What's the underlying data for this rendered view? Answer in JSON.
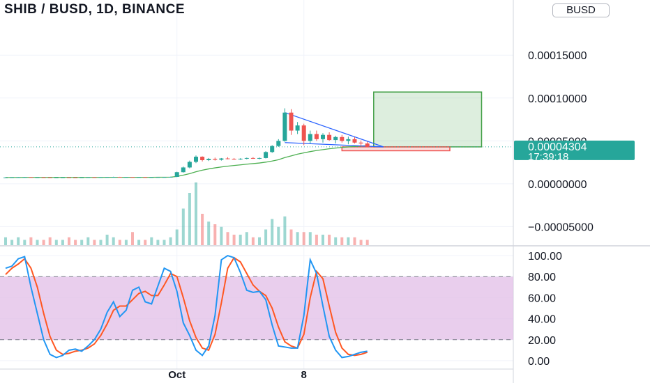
{
  "header": {
    "title": "SHIB / BUSD, 1D, BINANCE",
    "currency": "BUSD"
  },
  "chart_data": [
    {
      "type": "candlestick",
      "title": "SHIB / BUSD, 1D, BINANCE",
      "ylim": [
        -7e-05,
        0.00019
      ],
      "y_ticks": [
        "0.00015000",
        "0.00010000",
        "0.00005000",
        "0.00000000",
        "−0.00005000"
      ],
      "y_tick_values": [
        0.00015,
        0.0001,
        5e-05,
        0,
        -5e-05
      ],
      "x_ticks": [
        {
          "label": "Oct",
          "index": 27
        },
        {
          "label": "8",
          "index": 47
        }
      ],
      "last_price": "0.00004304",
      "last_price_value": 4.304e-05,
      "countdown": "17:39:18",
      "colors": {
        "up": "#26a69a",
        "down": "#ef5350",
        "ma": "#4caf50",
        "trendline": "#2962ff",
        "target_zone": "#43a047",
        "stop_zone": "#ef5350"
      },
      "ohlc": [
        [
          7e-06,
          7.5e-06,
          6.8e-06,
          7.2e-06
        ],
        [
          7.2e-06,
          7.6e-06,
          7e-06,
          7.4e-06
        ],
        [
          7.4e-06,
          7.8e-06,
          7.1e-06,
          7.5e-06
        ],
        [
          7.5e-06,
          7.9e-06,
          7.3e-06,
          7.7e-06
        ],
        [
          7.7e-06,
          7.8e-06,
          7.2e-06,
          7.3e-06
        ],
        [
          7.3e-06,
          7.6e-06,
          7.1e-06,
          7.4e-06
        ],
        [
          7.4e-06,
          7.7e-06,
          7.2e-06,
          7.3e-06
        ],
        [
          7.3e-06,
          7.5e-06,
          7e-06,
          7.1e-06
        ],
        [
          7.1e-06,
          7.4e-06,
          6.9e-06,
          7.2e-06
        ],
        [
          7.2e-06,
          7.4e-06,
          7e-06,
          7.3e-06
        ],
        [
          7.3e-06,
          7.5e-06,
          7.1e-06,
          7.2e-06
        ],
        [
          7.2e-06,
          7.4e-06,
          6.9e-06,
          7e-06
        ],
        [
          7e-06,
          7.4e-06,
          6.8e-06,
          7.3e-06
        ],
        [
          7.3e-06,
          7.6e-06,
          7.1e-06,
          7.5e-06
        ],
        [
          7.5e-06,
          7.7e-06,
          7.2e-06,
          7.4e-06
        ],
        [
          7.4e-06,
          7.7e-06,
          7.2e-06,
          7.6e-06
        ],
        [
          7.6e-06,
          8e-06,
          7.4e-06,
          7.8e-06
        ],
        [
          7.8e-06,
          8.2e-06,
          7.5e-06,
          8e-06
        ],
        [
          8e-06,
          8.1e-06,
          7.6e-06,
          7.7e-06
        ],
        [
          7.7e-06,
          8e-06,
          7.5e-06,
          7.8e-06
        ],
        [
          7.8e-06,
          8e-06,
          7.5e-06,
          7.6e-06
        ],
        [
          7.6e-06,
          7.9e-06,
          7.4e-06,
          7.7e-06
        ],
        [
          7.7e-06,
          7.9e-06,
          7.4e-06,
          7.5e-06
        ],
        [
          7.5e-06,
          7.8e-06,
          7.3e-06,
          7.6e-06
        ],
        [
          7.6e-06,
          7.8e-06,
          7.4e-06,
          7.7e-06
        ],
        [
          7.7e-06,
          7.9e-06,
          7.5e-06,
          7.8e-06
        ],
        [
          7.8e-06,
          8.2e-06,
          7.6e-06,
          8e-06
        ],
        [
          8e-06,
          1.4e-05,
          7.8e-06,
          1.35e-05
        ],
        [
          1.35e-05,
          2e-05,
          1.3e-05,
          1.9e-05
        ],
        [
          1.9e-05,
          2.7e-05,
          1.8e-05,
          2.55e-05
        ],
        [
          2.55e-05,
          3.3e-05,
          2.4e-05,
          3.15e-05
        ],
        [
          3.15e-05,
          3.2e-05,
          2.6e-05,
          2.75e-05
        ],
        [
          2.75e-05,
          3e-05,
          2.65e-05,
          2.9e-05
        ],
        [
          2.9e-05,
          3.05e-05,
          2.7e-05,
          2.8e-05
        ],
        [
          2.8e-05,
          3e-05,
          2.7e-05,
          2.95e-05
        ],
        [
          2.95e-05,
          3.1e-05,
          2.85e-05,
          2.9e-05
        ],
        [
          2.9e-05,
          3e-05,
          2.8e-05,
          2.85e-05
        ],
        [
          2.85e-05,
          2.98e-05,
          2.78e-05,
          2.92e-05
        ],
        [
          2.92e-05,
          3.05e-05,
          2.85e-05,
          3e-05
        ],
        [
          3e-05,
          3.1e-05,
          2.9e-05,
          2.95e-05
        ],
        [
          2.95e-05,
          3.05e-05,
          2.85e-05,
          3e-05
        ],
        [
          3e-05,
          3.8e-05,
          2.95e-05,
          3.7e-05
        ],
        [
          3.7e-05,
          4.5e-05,
          3.6e-05,
          4.4e-05
        ],
        [
          4.4e-05,
          5.2e-05,
          4.3e-05,
          5e-05
        ],
        [
          5e-05,
          8.8e-05,
          4.9e-05,
          8.3e-05
        ],
        [
          8.3e-05,
          8.7e-05,
          5.7e-05,
          6.2e-05
        ],
        [
          6.2e-05,
          7.2e-05,
          5.8e-05,
          6.8e-05
        ],
        [
          6.8e-05,
          7e-05,
          4.5e-05,
          5e-05
        ],
        [
          5e-05,
          6.2e-05,
          4.7e-05,
          5.8e-05
        ],
        [
          5.8e-05,
          6.2e-05,
          5e-05,
          5.2e-05
        ],
        [
          5.2e-05,
          5.9e-05,
          4.8e-05,
          5.7e-05
        ],
        [
          5.7e-05,
          6e-05,
          5e-05,
          5.1e-05
        ],
        [
          5.1e-05,
          5.6e-05,
          4.7e-05,
          5.45e-05
        ],
        [
          5.45e-05,
          5.7e-05,
          4.8e-05,
          5e-05
        ],
        [
          5e-05,
          5.5e-05,
          4.6e-05,
          5.2e-05
        ],
        [
          5.2e-05,
          5.45e-05,
          4.7e-05,
          4.8e-05
        ],
        [
          4.8e-05,
          5.05e-05,
          4.4e-05,
          4.7e-05
        ],
        [
          4.7e-05,
          4.9e-05,
          4.25e-05,
          4.3e-05
        ]
      ],
      "ma": [
        7.2e-06,
        7.3e-06,
        7.3e-06,
        7.4e-06,
        7.4e-06,
        7.4e-06,
        7.4e-06,
        7.4e-06,
        7.4e-06,
        7.4e-06,
        7.4e-06,
        7.4e-06,
        7.4e-06,
        7.4e-06,
        7.4e-06,
        7.4e-06,
        7.5e-06,
        7.5e-06,
        7.5e-06,
        7.5e-06,
        7.5e-06,
        7.5e-06,
        7.5e-06,
        7.5e-06,
        7.6e-06,
        7.6e-06,
        7.7e-06,
        8.5e-06,
        1e-05,
        1.18e-05,
        1.4e-05,
        1.58e-05,
        1.73e-05,
        1.85e-05,
        1.96e-05,
        2.05e-05,
        2.13e-05,
        2.2e-05,
        2.28e-05,
        2.35e-05,
        2.42e-05,
        2.52e-05,
        2.65e-05,
        2.8e-05,
        3.05e-05,
        3.25e-05,
        3.45e-05,
        3.6e-05,
        3.75e-05,
        3.88e-05,
        3.98e-05,
        4.08e-05,
        4.16e-05,
        4.23e-05,
        4.3e-05,
        4.35e-05,
        4.4e-05,
        4.44e-05
      ],
      "volume": [
        3,
        2,
        3,
        2,
        3,
        2,
        2,
        3,
        2,
        2,
        3,
        2,
        2,
        3,
        2,
        2,
        4,
        3,
        2,
        2,
        5,
        2,
        2,
        3,
        2,
        2,
        3,
        6,
        14,
        20,
        24,
        12,
        9,
        8,
        7,
        5,
        4,
        4,
        5,
        3,
        3,
        6,
        10,
        7,
        11,
        6,
        5,
        5,
        5,
        4,
        4,
        4,
        3,
        3,
        3,
        3,
        2,
        2
      ],
      "trendline_upper": {
        "from_index": 44,
        "from_value": 8.3e-05,
        "to_index": 58,
        "to_value": 4.3e-05
      },
      "trendline_lower": {
        "from_index": 44,
        "from_value": 4.8e-05,
        "to_index": 58,
        "to_value": 4.3e-05
      },
      "target_zone": {
        "from_index": 58,
        "to_index": 75,
        "top": 0.000107,
        "bottom": 4.3e-05
      },
      "stop_zone": {
        "from_index": 53,
        "to_index": 70,
        "top": 4.3e-05,
        "bottom": 3.85e-05
      }
    },
    {
      "type": "line",
      "indicator": "stochastic",
      "ylim": [
        -8,
        108
      ],
      "y_ticks": [
        "100.00",
        "80.00",
        "60.00",
        "40.00",
        "20.00",
        "0.00"
      ],
      "y_tick_values": [
        100,
        80,
        60,
        40,
        20,
        0
      ],
      "bands": [
        20,
        80
      ],
      "colors": {
        "k": "#2196f3",
        "d": "#ff5722",
        "band_fill": "#e1bee7"
      },
      "k": [
        88,
        90,
        97,
        99,
        70,
        45,
        20,
        6,
        3,
        5,
        10,
        11,
        9,
        14,
        20,
        30,
        46,
        56,
        42,
        48,
        67,
        70,
        56,
        54,
        71,
        88,
        85,
        66,
        36,
        24,
        10,
        5,
        14,
        43,
        96,
        100,
        98,
        84,
        67,
        65,
        66,
        58,
        34,
        14,
        13,
        12,
        12,
        43,
        96,
        83,
        52,
        23,
        10,
        3,
        4,
        6,
        8,
        9
      ],
      "d": [
        82,
        88,
        92,
        97,
        88,
        70,
        45,
        23,
        10,
        6,
        7,
        9,
        10,
        12,
        16,
        24,
        35,
        48,
        52,
        52,
        58,
        64,
        66,
        62,
        62,
        72,
        83,
        80,
        60,
        38,
        22,
        12,
        10,
        25,
        55,
        88,
        98,
        94,
        83,
        72,
        66,
        62,
        50,
        32,
        18,
        14,
        12,
        25,
        60,
        85,
        78,
        52,
        27,
        12,
        6,
        5,
        6,
        8
      ]
    }
  ]
}
